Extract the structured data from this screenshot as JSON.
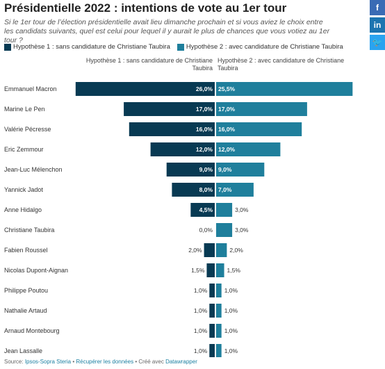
{
  "header": {
    "title": "Présidentielle 2022 : intentions de vote au 1er tour",
    "subtitle": "Si le 1er tour de l’élection présidentielle avait lieu dimanche prochain et si vous aviez le choix entre les candidats suivants, quel est celui pour lequel il y aurait le plus de chances que vous votiez au 1er tour ?"
  },
  "social": {
    "facebook": "f",
    "linkedin": "in",
    "twitter": "🐦"
  },
  "colors": {
    "h1": "#083a53",
    "h2": "#1f7f9c"
  },
  "chart_data": {
    "type": "bar",
    "categories": [
      "Emmanuel Macron",
      "Marine Le Pen",
      "Valérie Pécresse",
      "Eric Zemmour",
      "Jean-Luc Mélenchon",
      "Yannick Jadot",
      "Anne Hidalgo",
      "Christiane Taubira",
      "Fabien Roussel",
      "Nicolas Dupont-Aignan",
      "Philippe Poutou",
      "Nathalie Artaud",
      "Arnaud Montebourg",
      "Jean Lassalle"
    ],
    "series": [
      {
        "name": "Hypothèse 1 : sans candidature de Christiane Taubira",
        "values": [
          26,
          17,
          16,
          12,
          9,
          8,
          4.5,
          0,
          2,
          1.5,
          1,
          1,
          1,
          1
        ],
        "labels": [
          "26,0%",
          "17,0%",
          "16,0%",
          "12,0%",
          "9,0%",
          "8,0%",
          "4,5%",
          "0,0%",
          "2,0%",
          "1,5%",
          "1,0%",
          "1,0%",
          "1,0%",
          "1,0%"
        ]
      },
      {
        "name": "Hypothèse 2 : avec candidature de Christiane Taubira",
        "values": [
          25.5,
          17,
          16,
          12,
          9,
          7,
          3,
          3,
          2,
          1.5,
          1,
          1,
          1,
          1
        ],
        "labels": [
          "25,5%",
          "17,0%",
          "16,0%",
          "12,0%",
          "9,0%",
          "7,0%",
          "3,0%",
          "3,0%",
          "2,0%",
          "1,5%",
          "1,0%",
          "1,0%",
          "1,0%",
          "1,0%"
        ]
      }
    ]
  },
  "footer": {
    "source_label": "Source:",
    "source": "Ipsos-Sopra Steria",
    "sep1": "•",
    "download": "Récupérer les données",
    "sep2": "•",
    "created": "Créé avec",
    "tool": "Datawrapper"
  }
}
